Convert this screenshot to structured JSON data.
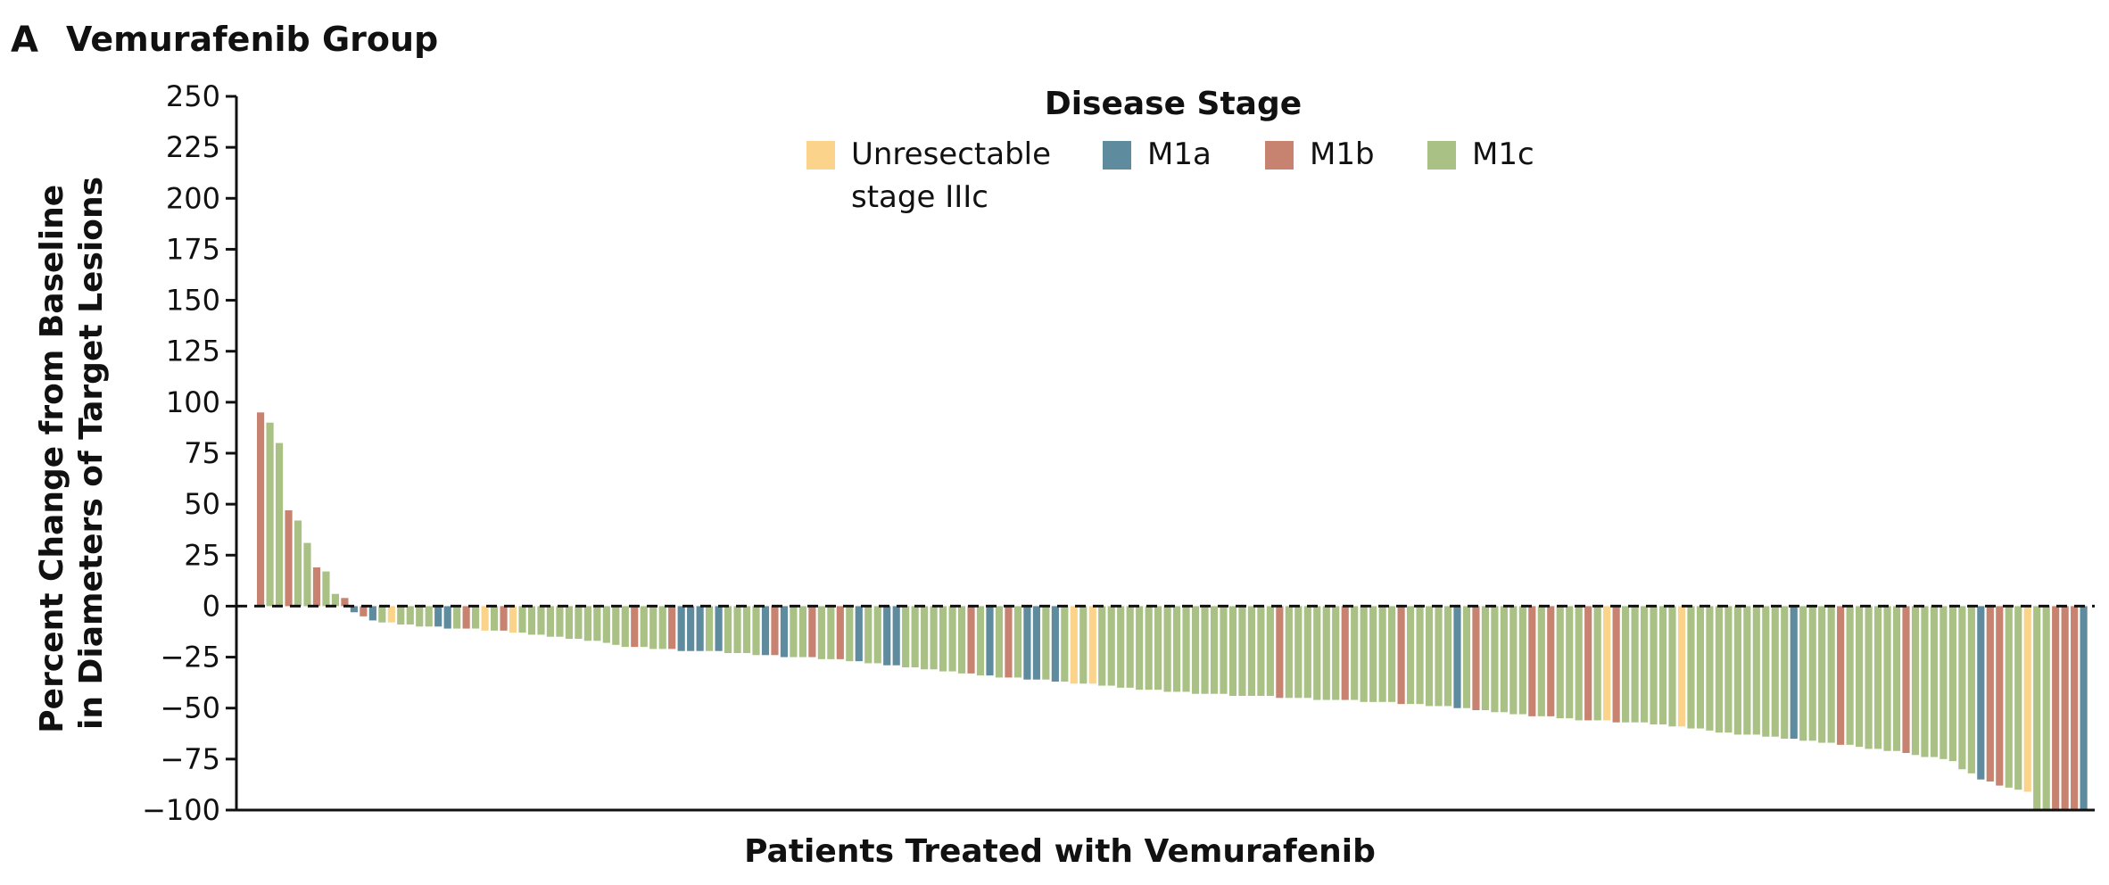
{
  "chart_data": {
    "type": "bar",
    "panel_label": "A",
    "title": "Vemurafenib Group",
    "xlabel": "Patients Treated with Vemurafenib",
    "ylabel_lines": [
      "Percent Change from Baseline",
      "in Diameters of Target Lesions"
    ],
    "ylim": [
      -100,
      250
    ],
    "yticks": [
      250,
      225,
      200,
      175,
      150,
      125,
      100,
      75,
      50,
      25,
      0,
      -25,
      -50,
      -75,
      -100
    ],
    "ytick_labels": [
      "250",
      "225",
      "200",
      "175",
      "150",
      "125",
      "100",
      "75",
      "50",
      "25",
      "0",
      "−25",
      "−50",
      "−75",
      "−100"
    ],
    "reference_line": {
      "y": 0,
      "style": "dashed"
    },
    "grid": false,
    "legend": {
      "title": "Disease Stage",
      "position": "top-center",
      "entries": [
        {
          "key": "IIIc",
          "lines": [
            "Unresectable",
            "stage IIIc"
          ],
          "color": "#FCD38A"
        },
        {
          "key": "M1a",
          "lines": [
            "M1a"
          ],
          "color": "#5E8B9E"
        },
        {
          "key": "M1b",
          "lines": [
            "M1b"
          ],
          "color": "#C7836F"
        },
        {
          "key": "M1c",
          "lines": [
            "M1c"
          ],
          "color": "#A9C184"
        }
      ]
    },
    "bars": [
      {
        "v": 95,
        "s": "M1b"
      },
      {
        "v": 90,
        "s": "M1c"
      },
      {
        "v": 80,
        "s": "M1c"
      },
      {
        "v": 47,
        "s": "M1b"
      },
      {
        "v": 42,
        "s": "M1c"
      },
      {
        "v": 31,
        "s": "M1c"
      },
      {
        "v": 19,
        "s": "M1b"
      },
      {
        "v": 17,
        "s": "M1c"
      },
      {
        "v": 6,
        "s": "M1c"
      },
      {
        "v": 4,
        "s": "M1b"
      },
      {
        "v": -3,
        "s": "M1a"
      },
      {
        "v": -5,
        "s": "M1b"
      },
      {
        "v": -7,
        "s": "M1a"
      },
      {
        "v": -8,
        "s": "M1c"
      },
      {
        "v": -8,
        "s": "IIIc"
      },
      {
        "v": -9,
        "s": "M1c"
      },
      {
        "v": -9,
        "s": "M1c"
      },
      {
        "v": -10,
        "s": "M1c"
      },
      {
        "v": -10,
        "s": "M1c"
      },
      {
        "v": -10,
        "s": "M1a"
      },
      {
        "v": -11,
        "s": "M1a"
      },
      {
        "v": -11,
        "s": "M1c"
      },
      {
        "v": -11,
        "s": "M1b"
      },
      {
        "v": -11,
        "s": "M1c"
      },
      {
        "v": -12,
        "s": "IIIc"
      },
      {
        "v": -12,
        "s": "M1c"
      },
      {
        "v": -12,
        "s": "M1b"
      },
      {
        "v": -13,
        "s": "IIIc"
      },
      {
        "v": -13,
        "s": "M1c"
      },
      {
        "v": -14,
        "s": "M1c"
      },
      {
        "v": -14,
        "s": "M1c"
      },
      {
        "v": -15,
        "s": "M1c"
      },
      {
        "v": -15,
        "s": "M1c"
      },
      {
        "v": -16,
        "s": "M1c"
      },
      {
        "v": -16,
        "s": "M1c"
      },
      {
        "v": -17,
        "s": "M1c"
      },
      {
        "v": -17,
        "s": "M1c"
      },
      {
        "v": -18,
        "s": "M1c"
      },
      {
        "v": -19,
        "s": "M1c"
      },
      {
        "v": -20,
        "s": "M1c"
      },
      {
        "v": -20,
        "s": "M1b"
      },
      {
        "v": -20,
        "s": "M1c"
      },
      {
        "v": -21,
        "s": "M1c"
      },
      {
        "v": -21,
        "s": "M1c"
      },
      {
        "v": -21,
        "s": "M1b"
      },
      {
        "v": -22,
        "s": "M1a"
      },
      {
        "v": -22,
        "s": "M1a"
      },
      {
        "v": -22,
        "s": "M1a"
      },
      {
        "v": -22,
        "s": "M1c"
      },
      {
        "v": -22,
        "s": "M1a"
      },
      {
        "v": -23,
        "s": "M1c"
      },
      {
        "v": -23,
        "s": "M1c"
      },
      {
        "v": -23,
        "s": "M1c"
      },
      {
        "v": -24,
        "s": "M1c"
      },
      {
        "v": -24,
        "s": "M1a"
      },
      {
        "v": -24,
        "s": "M1b"
      },
      {
        "v": -25,
        "s": "M1a"
      },
      {
        "v": -25,
        "s": "M1c"
      },
      {
        "v": -25,
        "s": "M1c"
      },
      {
        "v": -25,
        "s": "M1b"
      },
      {
        "v": -26,
        "s": "M1c"
      },
      {
        "v": -26,
        "s": "M1c"
      },
      {
        "v": -26,
        "s": "M1b"
      },
      {
        "v": -27,
        "s": "M1c"
      },
      {
        "v": -27,
        "s": "M1a"
      },
      {
        "v": -28,
        "s": "M1c"
      },
      {
        "v": -28,
        "s": "M1c"
      },
      {
        "v": -29,
        "s": "M1a"
      },
      {
        "v": -29,
        "s": "M1a"
      },
      {
        "v": -30,
        "s": "M1c"
      },
      {
        "v": -30,
        "s": "M1c"
      },
      {
        "v": -31,
        "s": "M1c"
      },
      {
        "v": -31,
        "s": "M1c"
      },
      {
        "v": -32,
        "s": "M1c"
      },
      {
        "v": -32,
        "s": "M1c"
      },
      {
        "v": -33,
        "s": "M1c"
      },
      {
        "v": -33,
        "s": "M1b"
      },
      {
        "v": -34,
        "s": "M1c"
      },
      {
        "v": -34,
        "s": "M1a"
      },
      {
        "v": -35,
        "s": "M1c"
      },
      {
        "v": -35,
        "s": "M1b"
      },
      {
        "v": -35,
        "s": "M1c"
      },
      {
        "v": -36,
        "s": "M1a"
      },
      {
        "v": -36,
        "s": "M1a"
      },
      {
        "v": -36,
        "s": "M1c"
      },
      {
        "v": -37,
        "s": "M1a"
      },
      {
        "v": -37,
        "s": "M1c"
      },
      {
        "v": -38,
        "s": "IIIc"
      },
      {
        "v": -38,
        "s": "M1c"
      },
      {
        "v": -38,
        "s": "IIIc"
      },
      {
        "v": -39,
        "s": "M1c"
      },
      {
        "v": -39,
        "s": "M1c"
      },
      {
        "v": -40,
        "s": "M1c"
      },
      {
        "v": -40,
        "s": "M1c"
      },
      {
        "v": -41,
        "s": "M1c"
      },
      {
        "v": -41,
        "s": "M1c"
      },
      {
        "v": -41,
        "s": "M1c"
      },
      {
        "v": -42,
        "s": "M1c"
      },
      {
        "v": -42,
        "s": "M1c"
      },
      {
        "v": -42,
        "s": "M1c"
      },
      {
        "v": -43,
        "s": "M1c"
      },
      {
        "v": -43,
        "s": "M1c"
      },
      {
        "v": -43,
        "s": "M1c"
      },
      {
        "v": -43,
        "s": "M1c"
      },
      {
        "v": -44,
        "s": "M1c"
      },
      {
        "v": -44,
        "s": "M1c"
      },
      {
        "v": -44,
        "s": "M1c"
      },
      {
        "v": -44,
        "s": "M1c"
      },
      {
        "v": -44,
        "s": "M1c"
      },
      {
        "v": -45,
        "s": "M1b"
      },
      {
        "v": -45,
        "s": "M1c"
      },
      {
        "v": -45,
        "s": "M1c"
      },
      {
        "v": -45,
        "s": "M1c"
      },
      {
        "v": -46,
        "s": "M1c"
      },
      {
        "v": -46,
        "s": "M1c"
      },
      {
        "v": -46,
        "s": "M1c"
      },
      {
        "v": -46,
        "s": "M1b"
      },
      {
        "v": -46,
        "s": "M1c"
      },
      {
        "v": -47,
        "s": "M1c"
      },
      {
        "v": -47,
        "s": "M1c"
      },
      {
        "v": -47,
        "s": "M1c"
      },
      {
        "v": -47,
        "s": "M1c"
      },
      {
        "v": -48,
        "s": "M1b"
      },
      {
        "v": -48,
        "s": "M1c"
      },
      {
        "v": -48,
        "s": "M1c"
      },
      {
        "v": -49,
        "s": "M1c"
      },
      {
        "v": -49,
        "s": "M1c"
      },
      {
        "v": -49,
        "s": "M1c"
      },
      {
        "v": -50,
        "s": "M1a"
      },
      {
        "v": -50,
        "s": "M1c"
      },
      {
        "v": -51,
        "s": "M1b"
      },
      {
        "v": -51,
        "s": "M1c"
      },
      {
        "v": -52,
        "s": "M1c"
      },
      {
        "v": -52,
        "s": "M1c"
      },
      {
        "v": -53,
        "s": "M1c"
      },
      {
        "v": -53,
        "s": "M1c"
      },
      {
        "v": -54,
        "s": "M1b"
      },
      {
        "v": -54,
        "s": "M1c"
      },
      {
        "v": -54,
        "s": "M1b"
      },
      {
        "v": -55,
        "s": "M1c"
      },
      {
        "v": -55,
        "s": "M1c"
      },
      {
        "v": -56,
        "s": "M1c"
      },
      {
        "v": -56,
        "s": "M1b"
      },
      {
        "v": -56,
        "s": "M1c"
      },
      {
        "v": -56,
        "s": "IIIc"
      },
      {
        "v": -57,
        "s": "M1b"
      },
      {
        "v": -57,
        "s": "M1c"
      },
      {
        "v": -57,
        "s": "M1c"
      },
      {
        "v": -57,
        "s": "M1c"
      },
      {
        "v": -58,
        "s": "M1c"
      },
      {
        "v": -58,
        "s": "M1c"
      },
      {
        "v": -59,
        "s": "M1c"
      },
      {
        "v": -59,
        "s": "IIIc"
      },
      {
        "v": -60,
        "s": "M1c"
      },
      {
        "v": -60,
        "s": "M1c"
      },
      {
        "v": -61,
        "s": "M1c"
      },
      {
        "v": -62,
        "s": "M1c"
      },
      {
        "v": -62,
        "s": "M1c"
      },
      {
        "v": -63,
        "s": "M1c"
      },
      {
        "v": -63,
        "s": "M1c"
      },
      {
        "v": -63,
        "s": "M1c"
      },
      {
        "v": -64,
        "s": "M1c"
      },
      {
        "v": -64,
        "s": "M1c"
      },
      {
        "v": -65,
        "s": "M1c"
      },
      {
        "v": -65,
        "s": "M1a"
      },
      {
        "v": -66,
        "s": "M1c"
      },
      {
        "v": -66,
        "s": "M1c"
      },
      {
        "v": -67,
        "s": "M1c"
      },
      {
        "v": -67,
        "s": "M1c"
      },
      {
        "v": -68,
        "s": "M1b"
      },
      {
        "v": -68,
        "s": "M1c"
      },
      {
        "v": -69,
        "s": "M1c"
      },
      {
        "v": -70,
        "s": "M1c"
      },
      {
        "v": -70,
        "s": "M1c"
      },
      {
        "v": -71,
        "s": "M1c"
      },
      {
        "v": -71,
        "s": "M1c"
      },
      {
        "v": -72,
        "s": "M1b"
      },
      {
        "v": -73,
        "s": "M1c"
      },
      {
        "v": -74,
        "s": "M1c"
      },
      {
        "v": -74,
        "s": "M1c"
      },
      {
        "v": -75,
        "s": "M1c"
      },
      {
        "v": -76,
        "s": "M1c"
      },
      {
        "v": -80,
        "s": "M1c"
      },
      {
        "v": -82,
        "s": "M1c"
      },
      {
        "v": -85,
        "s": "M1a"
      },
      {
        "v": -86,
        "s": "M1b"
      },
      {
        "v": -88,
        "s": "M1b"
      },
      {
        "v": -89,
        "s": "M1c"
      },
      {
        "v": -90,
        "s": "M1c"
      },
      {
        "v": -91,
        "s": "IIIc"
      },
      {
        "v": -100,
        "s": "M1c"
      },
      {
        "v": -100,
        "s": "M1c"
      },
      {
        "v": -100,
        "s": "M1b"
      },
      {
        "v": -100,
        "s": "M1b"
      },
      {
        "v": -100,
        "s": "M1b"
      },
      {
        "v": -100,
        "s": "M1a"
      }
    ]
  }
}
